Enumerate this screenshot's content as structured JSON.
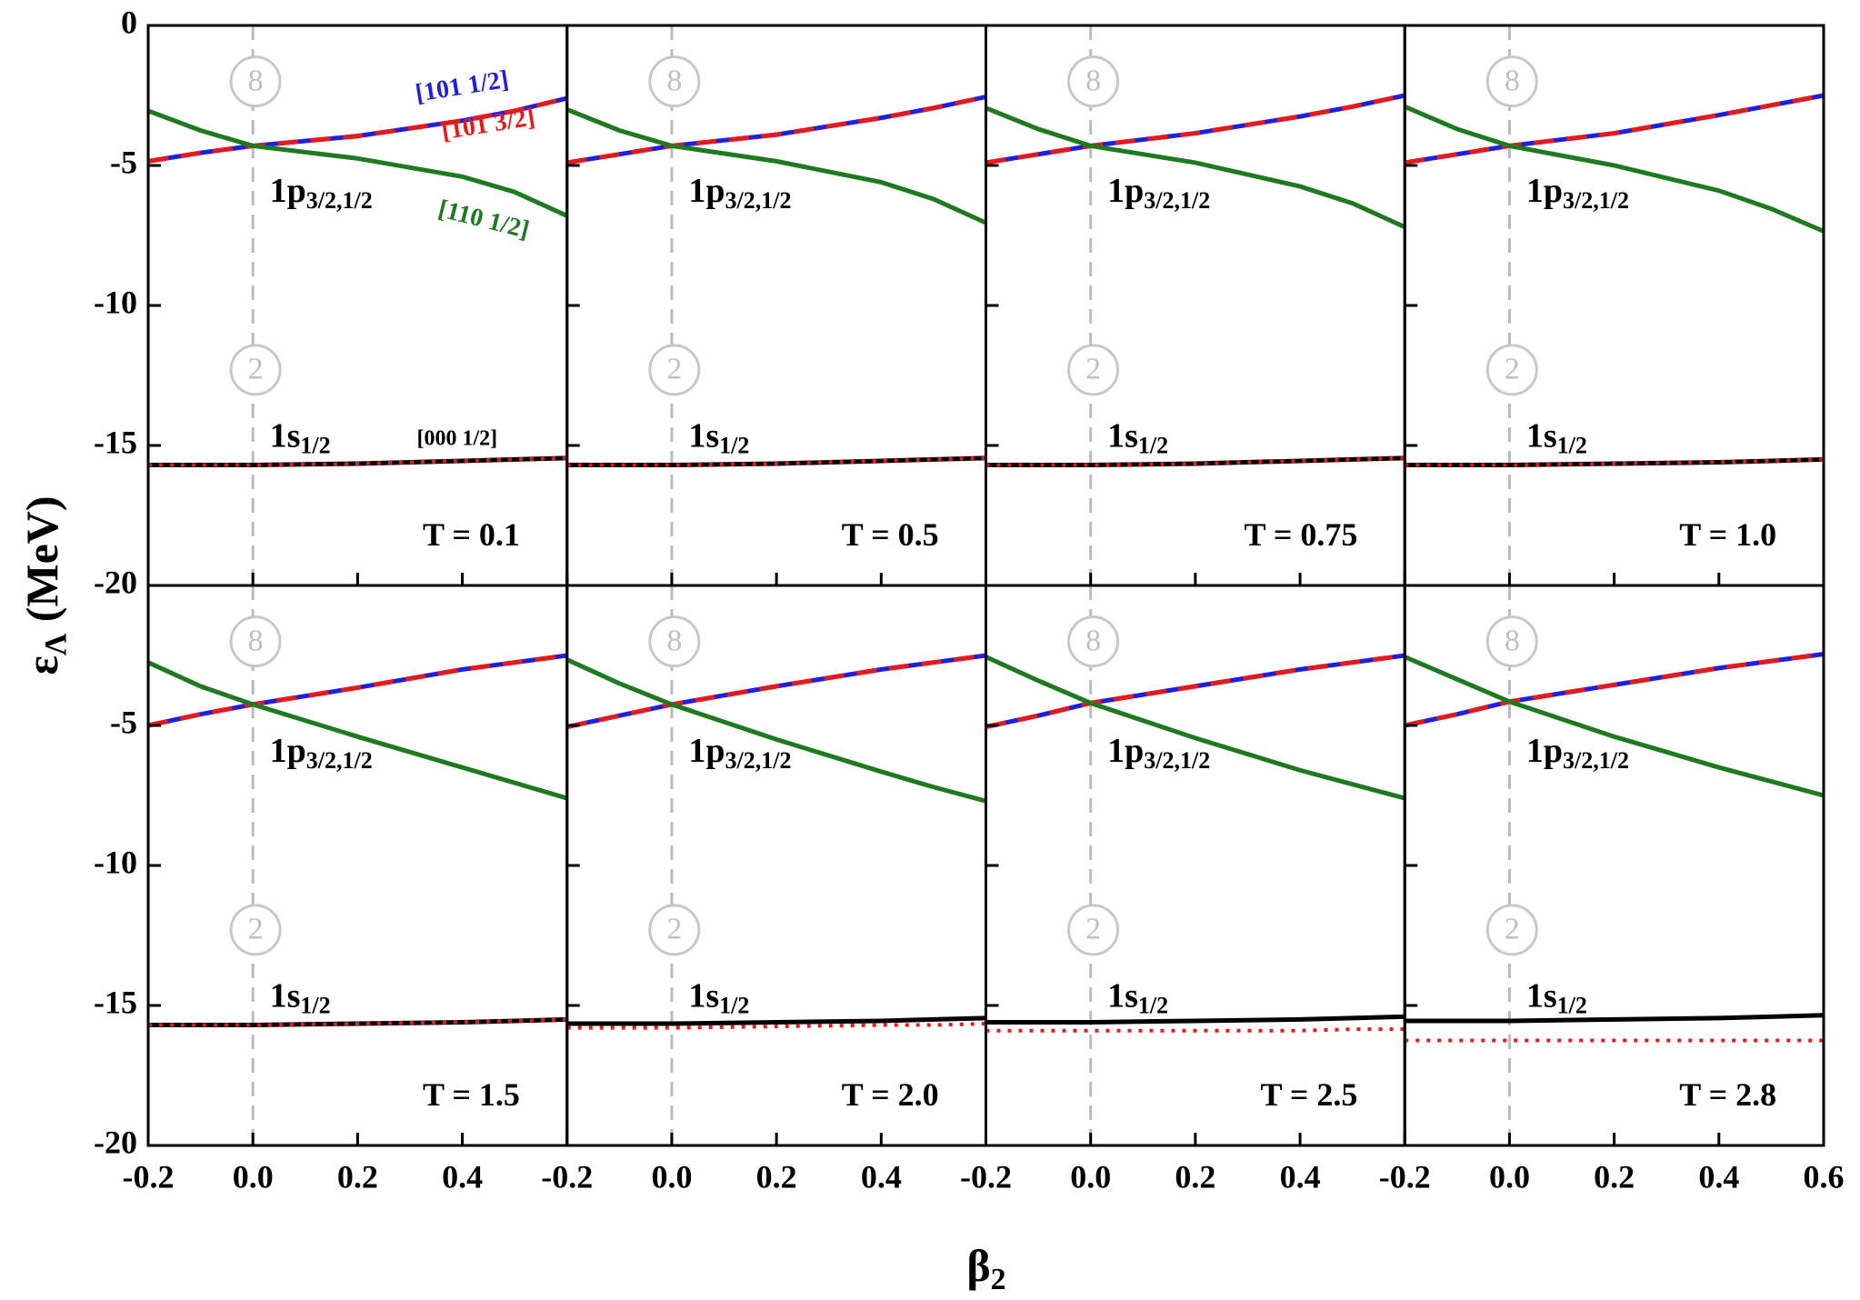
{
  "figure": {
    "ylabel": {
      "main": "ε",
      "sub": "Λ",
      "rest": " (MeV)"
    },
    "xlabel": {
      "main": "β",
      "sub": "2"
    }
  },
  "chart_data": [
    {
      "type": "line",
      "annotation": "T = 0.1",
      "levels": [
        {
          "text": "1p",
          "sub": "3/2,1/2"
        },
        {
          "text": "1s",
          "sub": "1/2"
        }
      ],
      "circles": [
        "8",
        "2"
      ],
      "vline": 0,
      "x": [
        -0.2,
        -0.1,
        0,
        0.2,
        0.4,
        0.5,
        0.6
      ],
      "xlim": [
        -0.2,
        0.6
      ],
      "ylim": [
        -20,
        0
      ],
      "xticks": [
        -0.2,
        0,
        0.2,
        0.4,
        0.6
      ],
      "xtick_labels": false,
      "yticks": [
        0,
        -5,
        -10,
        -15,
        -20
      ],
      "ytick_labels": true,
      "series": [
        {
          "name": "[101 1/2]",
          "color": "#1f1fe0",
          "style": "solid",
          "values": [
            -4.85,
            -4.55,
            -4.3,
            -3.95,
            -3.4,
            -3.05,
            -2.6
          ]
        },
        {
          "name": "[101 3/2]",
          "color": "#e61a1a",
          "style": "dashed",
          "values": [
            -4.85,
            -4.55,
            -4.3,
            -3.95,
            -3.4,
            -3.05,
            -2.6
          ]
        },
        {
          "name": "[110 1/2]",
          "color": "#1e7a1e",
          "style": "solid",
          "values": [
            -3.05,
            -3.75,
            -4.3,
            -4.75,
            -5.4,
            -5.95,
            -6.8
          ]
        },
        {
          "name": "[000 1/2]",
          "color": "#000000",
          "style": "solid",
          "values": [
            -15.7,
            -15.7,
            -15.7,
            -15.65,
            -15.55,
            -15.5,
            -15.45
          ]
        },
        {
          "color": "#e61a1a",
          "style": "dotted",
          "values": [
            -15.7,
            -15.7,
            -15.7,
            -15.65,
            -15.55,
            -15.5,
            -15.45
          ]
        }
      ]
    },
    {
      "type": "line",
      "annotation": "T = 0.5",
      "levels": [
        {
          "text": "1p",
          "sub": "3/2,1/2"
        },
        {
          "text": "1s",
          "sub": "1/2"
        }
      ],
      "circles": [
        "8",
        "2"
      ],
      "vline": 0,
      "x": [
        -0.2,
        -0.1,
        0,
        0.2,
        0.4,
        0.5,
        0.6
      ],
      "xlim": [
        -0.2,
        0.6
      ],
      "ylim": [
        -20,
        0
      ],
      "xticks": [
        -0.2,
        0,
        0.2,
        0.4,
        0.6
      ],
      "xtick_labels": false,
      "yticks": [
        0,
        -5,
        -10,
        -15,
        -20
      ],
      "ytick_labels": false,
      "series": [
        {
          "color": "#1f1fe0",
          "style": "solid",
          "values": [
            -4.9,
            -4.6,
            -4.3,
            -3.9,
            -3.3,
            -2.95,
            -2.55
          ]
        },
        {
          "color": "#e61a1a",
          "style": "dashed",
          "values": [
            -4.9,
            -4.6,
            -4.3,
            -3.9,
            -3.3,
            -2.95,
            -2.55
          ]
        },
        {
          "color": "#1e7a1e",
          "style": "solid",
          "values": [
            -3.0,
            -3.75,
            -4.3,
            -4.85,
            -5.6,
            -6.2,
            -7.05
          ]
        },
        {
          "color": "#000000",
          "style": "solid",
          "values": [
            -15.7,
            -15.7,
            -15.7,
            -15.65,
            -15.55,
            -15.5,
            -15.45
          ]
        },
        {
          "color": "#e61a1a",
          "style": "dotted",
          "values": [
            -15.7,
            -15.7,
            -15.7,
            -15.65,
            -15.55,
            -15.5,
            -15.45
          ]
        }
      ]
    },
    {
      "type": "line",
      "annotation": "T = 0.75",
      "levels": [
        {
          "text": "1p",
          "sub": "3/2,1/2"
        },
        {
          "text": "1s",
          "sub": "1/2"
        }
      ],
      "circles": [
        "8",
        "2"
      ],
      "vline": 0,
      "x": [
        -0.2,
        -0.1,
        0,
        0.2,
        0.4,
        0.5,
        0.6
      ],
      "xlim": [
        -0.2,
        0.6
      ],
      "ylim": [
        -20,
        0
      ],
      "xticks": [
        -0.2,
        0,
        0.2,
        0.4,
        0.6
      ],
      "xtick_labels": false,
      "yticks": [
        0,
        -5,
        -10,
        -15,
        -20
      ],
      "ytick_labels": false,
      "series": [
        {
          "color": "#1f1fe0",
          "style": "solid",
          "values": [
            -4.9,
            -4.6,
            -4.3,
            -3.85,
            -3.25,
            -2.9,
            -2.5
          ]
        },
        {
          "color": "#e61a1a",
          "style": "dashed",
          "values": [
            -4.9,
            -4.6,
            -4.3,
            -3.85,
            -3.25,
            -2.9,
            -2.5
          ]
        },
        {
          "color": "#1e7a1e",
          "style": "solid",
          "values": [
            -2.95,
            -3.7,
            -4.3,
            -4.9,
            -5.75,
            -6.35,
            -7.2
          ]
        },
        {
          "color": "#000000",
          "style": "solid",
          "values": [
            -15.7,
            -15.7,
            -15.7,
            -15.65,
            -15.55,
            -15.5,
            -15.45
          ]
        },
        {
          "color": "#e61a1a",
          "style": "dotted",
          "values": [
            -15.7,
            -15.7,
            -15.7,
            -15.65,
            -15.55,
            -15.5,
            -15.45
          ]
        }
      ]
    },
    {
      "type": "line",
      "annotation": "T = 1.0",
      "levels": [
        {
          "text": "1p",
          "sub": "3/2,1/2"
        },
        {
          "text": "1s",
          "sub": "1/2"
        }
      ],
      "circles": [
        "8",
        "2"
      ],
      "vline": 0,
      "x": [
        -0.2,
        -0.1,
        0,
        0.2,
        0.4,
        0.5,
        0.6
      ],
      "xlim": [
        -0.2,
        0.6
      ],
      "ylim": [
        -20,
        0
      ],
      "xticks": [
        -0.2,
        0,
        0.2,
        0.4,
        0.6
      ],
      "xtick_labels": false,
      "yticks": [
        0,
        -5,
        -10,
        -15,
        -20
      ],
      "ytick_labels": false,
      "series": [
        {
          "color": "#1f1fe0",
          "style": "solid",
          "values": [
            -4.9,
            -4.6,
            -4.3,
            -3.85,
            -3.2,
            -2.85,
            -2.5
          ]
        },
        {
          "color": "#e61a1a",
          "style": "dashed",
          "values": [
            -4.9,
            -4.6,
            -4.3,
            -3.85,
            -3.2,
            -2.85,
            -2.5
          ]
        },
        {
          "color": "#1e7a1e",
          "style": "solid",
          "values": [
            -2.9,
            -3.7,
            -4.3,
            -5.0,
            -5.9,
            -6.55,
            -7.35
          ]
        },
        {
          "color": "#000000",
          "style": "solid",
          "values": [
            -15.7,
            -15.7,
            -15.7,
            -15.65,
            -15.6,
            -15.55,
            -15.5
          ]
        },
        {
          "color": "#e61a1a",
          "style": "dotted",
          "values": [
            -15.7,
            -15.7,
            -15.7,
            -15.65,
            -15.6,
            -15.55,
            -15.5
          ]
        }
      ]
    },
    {
      "type": "line",
      "annotation": "T = 1.5",
      "levels": [
        {
          "text": "1p",
          "sub": "3/2,1/2"
        },
        {
          "text": "1s",
          "sub": "1/2"
        }
      ],
      "circles": [
        "8",
        "2"
      ],
      "vline": 0,
      "x": [
        -0.2,
        -0.1,
        0,
        0.2,
        0.4,
        0.5,
        0.6
      ],
      "xlim": [
        -0.2,
        0.6
      ],
      "ylim": [
        -20,
        0
      ],
      "xticks": [
        -0.2,
        {
          "value": 0,
          "label": "0.0"
        },
        0.2,
        0.4
      ],
      "xtick_labels": true,
      "yticks": [
        -5,
        -10,
        -15,
        -20
      ],
      "ytick_labels": true,
      "series": [
        {
          "color": "#1f1fe0",
          "style": "solid",
          "values": [
            -5.0,
            -4.6,
            -4.25,
            -3.65,
            -3.0,
            -2.75,
            -2.5
          ]
        },
        {
          "color": "#e61a1a",
          "style": "dashed",
          "values": [
            -5.0,
            -4.6,
            -4.25,
            -3.65,
            -3.0,
            -2.75,
            -2.5
          ]
        },
        {
          "color": "#1e7a1e",
          "style": "solid",
          "values": [
            -2.75,
            -3.6,
            -4.25,
            -5.4,
            -6.5,
            -7.05,
            -7.6
          ]
        },
        {
          "color": "#000000",
          "style": "solid",
          "values": [
            -15.7,
            -15.7,
            -15.7,
            -15.65,
            -15.6,
            -15.55,
            -15.5
          ]
        },
        {
          "color": "#e61a1a",
          "style": "dotted",
          "values": [
            -15.7,
            -15.7,
            -15.7,
            -15.65,
            -15.6,
            -15.55,
            -15.5
          ]
        }
      ]
    },
    {
      "type": "line",
      "annotation": "T = 2.0",
      "levels": [
        {
          "text": "1p",
          "sub": "3/2,1/2"
        },
        {
          "text": "1s",
          "sub": "1/2"
        }
      ],
      "circles": [
        "8",
        "2"
      ],
      "vline": 0,
      "x": [
        -0.2,
        -0.1,
        0,
        0.2,
        0.4,
        0.5,
        0.6
      ],
      "xlim": [
        -0.2,
        0.6
      ],
      "ylim": [
        -20,
        0
      ],
      "xticks": [
        -0.2,
        {
          "value": 0,
          "label": "0.0"
        },
        0.2,
        0.4
      ],
      "xtick_labels": true,
      "yticks": [
        0,
        -5,
        -10,
        -15,
        -20
      ],
      "ytick_labels": false,
      "series": [
        {
          "color": "#1f1fe0",
          "style": "solid",
          "values": [
            -5.05,
            -4.65,
            -4.25,
            -3.6,
            -3.0,
            -2.75,
            -2.5
          ]
        },
        {
          "color": "#e61a1a",
          "style": "dashed",
          "values": [
            -5.05,
            -4.65,
            -4.25,
            -3.6,
            -3.0,
            -2.75,
            -2.5
          ]
        },
        {
          "color": "#1e7a1e",
          "style": "solid",
          "values": [
            -2.65,
            -3.5,
            -4.25,
            -5.5,
            -6.65,
            -7.2,
            -7.7
          ]
        },
        {
          "color": "#000000",
          "style": "solid",
          "values": [
            -15.65,
            -15.65,
            -15.65,
            -15.6,
            -15.55,
            -15.5,
            -15.45
          ]
        },
        {
          "color": "#e61a1a",
          "style": "dotted",
          "values": [
            -15.8,
            -15.8,
            -15.8,
            -15.75,
            -15.7,
            -15.7,
            -15.65
          ]
        }
      ]
    },
    {
      "type": "line",
      "annotation": "T = 2.5",
      "levels": [
        {
          "text": "1p",
          "sub": "3/2,1/2"
        },
        {
          "text": "1s",
          "sub": "1/2"
        }
      ],
      "circles": [
        "8",
        "2"
      ],
      "vline": 0,
      "x": [
        -0.2,
        -0.1,
        0,
        0.2,
        0.4,
        0.5,
        0.6
      ],
      "xlim": [
        -0.2,
        0.6
      ],
      "ylim": [
        -20,
        0
      ],
      "xticks": [
        -0.2,
        {
          "value": 0,
          "label": "0.0"
        },
        0.2,
        0.4
      ],
      "xtick_labels": true,
      "yticks": [
        0,
        -5,
        -10,
        -15,
        -20
      ],
      "ytick_labels": false,
      "series": [
        {
          "color": "#1f1fe0",
          "style": "solid",
          "values": [
            -5.05,
            -4.65,
            -4.2,
            -3.6,
            -3.0,
            -2.75,
            -2.5
          ]
        },
        {
          "color": "#e61a1a",
          "style": "dashed",
          "values": [
            -5.05,
            -4.65,
            -4.2,
            -3.6,
            -3.0,
            -2.75,
            -2.5
          ]
        },
        {
          "color": "#1e7a1e",
          "style": "solid",
          "values": [
            -2.55,
            -3.4,
            -4.2,
            -5.45,
            -6.6,
            -7.1,
            -7.6
          ]
        },
        {
          "color": "#000000",
          "style": "solid",
          "values": [
            -15.6,
            -15.6,
            -15.6,
            -15.55,
            -15.5,
            -15.45,
            -15.4
          ]
        },
        {
          "color": "#e61a1a",
          "style": "dotted",
          "values": [
            -15.9,
            -15.9,
            -15.9,
            -15.9,
            -15.9,
            -15.85,
            -15.85
          ]
        }
      ]
    },
    {
      "type": "line",
      "annotation": "T = 2.8",
      "levels": [
        {
          "text": "1p",
          "sub": "3/2,1/2"
        },
        {
          "text": "1s",
          "sub": "1/2"
        }
      ],
      "circles": [
        "8",
        "2"
      ],
      "vline": 0,
      "x": [
        -0.2,
        -0.1,
        0,
        0.2,
        0.4,
        0.5,
        0.6
      ],
      "xlim": [
        -0.2,
        0.6
      ],
      "ylim": [
        -20,
        0
      ],
      "xticks": [
        -0.2,
        {
          "value": 0,
          "label": "0.0"
        },
        0.2,
        0.4,
        0.6
      ],
      "xtick_labels": true,
      "yticks": [
        0,
        -5,
        -10,
        -15,
        -20
      ],
      "ytick_labels": false,
      "series": [
        {
          "color": "#1f1fe0",
          "style": "solid",
          "values": [
            -5.0,
            -4.6,
            -4.15,
            -3.55,
            -2.95,
            -2.7,
            -2.45
          ]
        },
        {
          "color": "#e61a1a",
          "style": "dashed",
          "values": [
            -5.0,
            -4.6,
            -4.15,
            -3.55,
            -2.95,
            -2.7,
            -2.45
          ]
        },
        {
          "color": "#1e7a1e",
          "style": "solid",
          "values": [
            -2.55,
            -3.35,
            -4.15,
            -5.4,
            -6.5,
            -7.0,
            -7.5
          ]
        },
        {
          "color": "#000000",
          "style": "solid",
          "values": [
            -15.55,
            -15.55,
            -15.55,
            -15.5,
            -15.45,
            -15.4,
            -15.35
          ]
        },
        {
          "color": "#e61a1a",
          "style": "dotted",
          "values": [
            -16.25,
            -16.25,
            -16.25,
            -16.25,
            -16.25,
            -16.25,
            -16.25
          ]
        }
      ]
    }
  ]
}
